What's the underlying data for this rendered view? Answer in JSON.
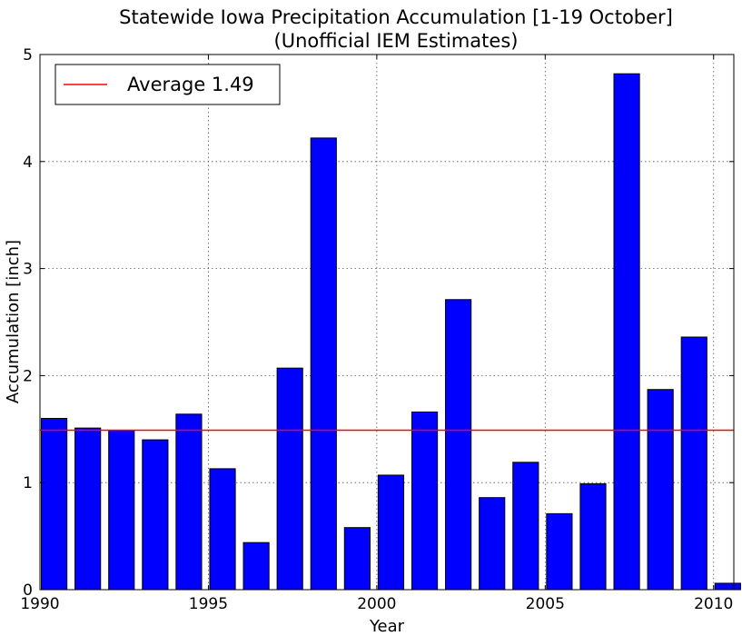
{
  "chart_data": {
    "type": "bar",
    "title": "Statewide Iowa Precipitation Accumulation [1-19 October]",
    "subtitle": "(Unofficial IEM Estimates)",
    "xlabel": "Year",
    "ylabel": "Accumulation [inch]",
    "xlim": [
      1990,
      2010.6
    ],
    "ylim": [
      0,
      5
    ],
    "x_ticks": [
      1990,
      1995,
      2000,
      2005,
      2010
    ],
    "y_ticks": [
      0,
      1,
      2,
      3,
      4,
      5
    ],
    "grid": true,
    "legend_position": "top-left",
    "bar_color": "#0000ff",
    "years": [
      1990,
      1991,
      1992,
      1993,
      1994,
      1995,
      1996,
      1997,
      1998,
      1999,
      2000,
      2001,
      2002,
      2003,
      2004,
      2005,
      2006,
      2007,
      2008,
      2009,
      2010
    ],
    "values": [
      1.6,
      1.51,
      1.49,
      1.4,
      1.64,
      1.13,
      0.44,
      2.07,
      4.22,
      0.58,
      1.07,
      1.66,
      2.71,
      0.86,
      1.19,
      0.71,
      0.99,
      4.82,
      1.87,
      2.36,
      0.06
    ],
    "average": {
      "label": "Average 1.49",
      "value": 1.49,
      "color": "#ff0000"
    }
  }
}
